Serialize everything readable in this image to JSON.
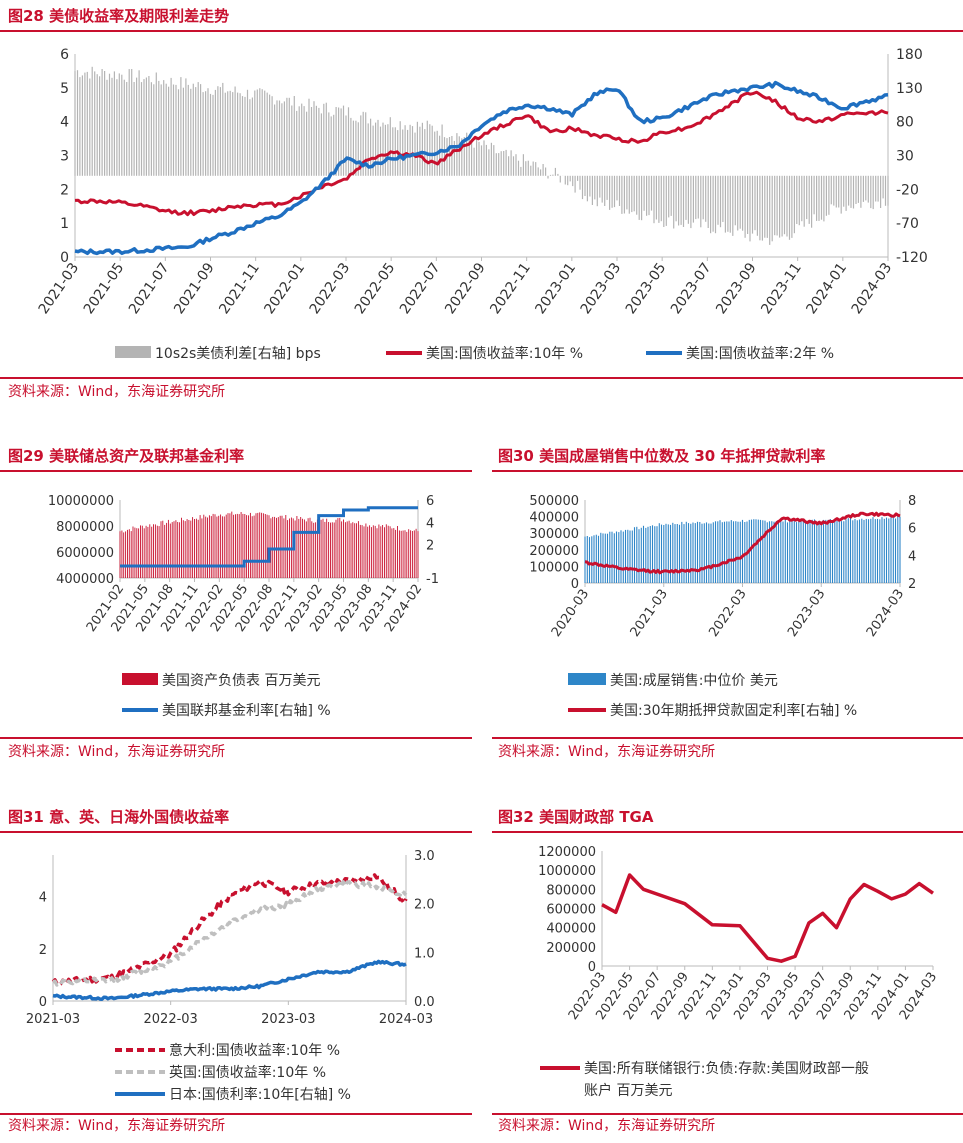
{
  "colors": {
    "accent": "#c8102e",
    "blue": "#1f6fc1",
    "gray": "#b4b4b4",
    "grayDash": "#bfbfbf"
  },
  "panels": {
    "p28": {
      "title": "图28  美债收益率及期限利差走势",
      "source": "资料来源：Wind，东海证券研究所"
    },
    "p29": {
      "title": "图29  美联储总资产及联邦基金利率",
      "source": "资料来源：Wind，东海证券研究所"
    },
    "p30": {
      "title": "图30  美国成屋销售中位数及 30 年抵押贷款利率",
      "source": "资料来源：Wind，东海证券研究所"
    },
    "p31": {
      "title": "图31   意、英、日海外国债收益率",
      "source": "资料来源：Wind，东海证券研究所"
    },
    "p32": {
      "title": "图32  美国财政部 TGA",
      "source": "资料来源：Wind，东海证券研究所"
    }
  },
  "chart_data": [
    {
      "id": "c28",
      "type": "bar+line",
      "categories": [
        "2021-03",
        "2021-05",
        "2021-07",
        "2021-09",
        "2021-11",
        "2022-01",
        "2022-03",
        "2022-05",
        "2022-07",
        "2022-09",
        "2022-11",
        "2023-01",
        "2023-03",
        "2023-05",
        "2023-07",
        "2023-09",
        "2023-11",
        "2024-01",
        "2024-03"
      ],
      "left_axis": {
        "ticks": [
          "0",
          "1",
          "2",
          "3",
          "4",
          "5",
          "6"
        ],
        "ylim": [
          0,
          6
        ]
      },
      "right_axis": {
        "ticks": [
          "-120",
          "-70",
          "-20",
          "30",
          "80",
          "130",
          "180"
        ],
        "ylim": [
          -120,
          180
        ]
      },
      "legend": [
        "10s2s美债利差[右轴] bps",
        "美国:国债收益率:10年 %",
        "美国:国债收益率:2年 %"
      ],
      "series": [
        {
          "name": "10s2s美债利差[右轴] bps",
          "kind": "bar",
          "axis": "right",
          "x": [
            0,
            1,
            2,
            3,
            4,
            5,
            6,
            7,
            8,
            9,
            10,
            11,
            12,
            13,
            14,
            15,
            16,
            17,
            18,
            19,
            20,
            21,
            22,
            23,
            24,
            25,
            26,
            27,
            28,
            29,
            30,
            31,
            32,
            33,
            34,
            35,
            36
          ],
          "values": [
            155,
            152,
            150,
            145,
            140,
            135,
            130,
            125,
            120,
            115,
            105,
            100,
            95,
            85,
            80,
            75,
            70,
            60,
            45,
            30,
            20,
            5,
            -10,
            -40,
            -45,
            -55,
            -65,
            -70,
            -75,
            -80,
            -90,
            -95,
            -80,
            -60,
            -45,
            -40,
            -35
          ]
        },
        {
          "name": "美国:国债收益率:10年 %",
          "kind": "line",
          "axis": "left",
          "x": [
            0,
            1,
            2,
            3,
            4,
            5,
            6,
            7,
            8,
            9,
            10,
            11,
            12,
            13,
            14,
            15,
            16,
            17,
            18,
            19,
            20,
            21,
            22,
            23,
            24,
            25,
            26,
            27,
            28,
            29,
            30,
            31,
            32,
            33,
            34,
            35,
            36
          ],
          "values": [
            1.65,
            1.65,
            1.6,
            1.5,
            1.35,
            1.3,
            1.35,
            1.5,
            1.55,
            1.55,
            1.8,
            2.1,
            2.3,
            2.9,
            3.1,
            3.0,
            2.75,
            3.2,
            3.6,
            3.9,
            4.2,
            3.7,
            3.8,
            3.6,
            3.5,
            3.4,
            3.7,
            3.8,
            4.1,
            4.5,
            4.9,
            4.6,
            4.1,
            4.0,
            4.2,
            4.25,
            4.3
          ]
        },
        {
          "name": "美国:国债收益率:2年 %",
          "kind": "line",
          "axis": "left",
          "x": [
            0,
            1,
            2,
            3,
            4,
            5,
            6,
            7,
            8,
            9,
            10,
            11,
            12,
            13,
            14,
            15,
            16,
            17,
            18,
            19,
            20,
            21,
            22,
            23,
            24,
            25,
            26,
            27,
            28,
            29,
            30,
            31,
            32,
            33,
            34,
            35,
            36
          ],
          "values": [
            0.15,
            0.16,
            0.16,
            0.2,
            0.25,
            0.3,
            0.55,
            0.75,
            1.0,
            1.2,
            1.6,
            2.2,
            2.9,
            2.7,
            2.9,
            3.0,
            3.1,
            3.3,
            3.9,
            4.3,
            4.5,
            4.4,
            4.2,
            4.8,
            5.0,
            4.0,
            4.1,
            4.4,
            4.7,
            4.9,
            5.0,
            5.1,
            4.9,
            4.7,
            4.4,
            4.6,
            4.75
          ]
        }
      ]
    },
    {
      "id": "c29",
      "type": "bar+line",
      "categories": [
        "2021-02",
        "2021-05",
        "2021-08",
        "2021-11",
        "2022-02",
        "2022-05",
        "2022-08",
        "2022-11",
        "2023-02",
        "2023-05",
        "2023-08",
        "2023-11",
        "2024-02"
      ],
      "left_axis": {
        "ticks": [
          "4000000",
          "6000000",
          "8000000",
          "10000000"
        ],
        "ylim": [
          4000000,
          10000000
        ]
      },
      "right_axis": {
        "ticks": [
          "-1",
          "2",
          "4",
          "6"
        ],
        "ylim": [
          -1,
          6
        ]
      },
      "legend": [
        "美国资产负债表 百万美元",
        "美国联邦基金利率[右轴] %"
      ],
      "series": [
        {
          "name": "美国资产负债表 百万美元",
          "kind": "bar",
          "axis": "left",
          "x": [
            0,
            1,
            2,
            3,
            4,
            5,
            6,
            7,
            8,
            9,
            10,
            11,
            12
          ],
          "values": [
            7600000,
            8000000,
            8300000,
            8600000,
            8900000,
            8950000,
            8800000,
            8600000,
            8400000,
            8500000,
            8100000,
            7900000,
            7600000
          ]
        },
        {
          "name": "美国联邦基金利率[右轴] %",
          "kind": "step",
          "axis": "right",
          "x": [
            0,
            1,
            2,
            3,
            4,
            5,
            6,
            7,
            8,
            9,
            10,
            11,
            12
          ],
          "values": [
            0.08,
            0.08,
            0.08,
            0.08,
            0.08,
            0.5,
            1.6,
            3.1,
            4.6,
            5.1,
            5.3,
            5.3,
            5.3
          ]
        }
      ]
    },
    {
      "id": "c30",
      "type": "bar+line",
      "categories": [
        "2020-03",
        "2021-03",
        "2022-03",
        "2023-03",
        "2024-03"
      ],
      "left_axis": {
        "ticks": [
          "0",
          "100000",
          "200000",
          "300000",
          "400000",
          "500000"
        ],
        "ylim": [
          0,
          500000
        ]
      },
      "right_axis": {
        "ticks": [
          "2",
          "4",
          "6",
          "8"
        ],
        "ylim": [
          2,
          8
        ]
      },
      "legend": [
        "美国:成屋销售:中位价 美元",
        "美国:30年期抵押贷款固定利率[右轴] %"
      ],
      "series": [
        {
          "name": "美国:成屋销售:中位价 美元",
          "kind": "bar",
          "axis": "left",
          "x": [
            0,
            1,
            2,
            3,
            4
          ],
          "values": [
            280000,
            355000,
            375000,
            375000,
            400000
          ]
        },
        {
          "name": "美国:30年期抵押贷款固定利率[右轴] %",
          "kind": "line",
          "axis": "right",
          "x": [
            0,
            0.5,
            1,
            1.5,
            2,
            2.5,
            3,
            3.5,
            4
          ],
          "values": [
            3.5,
            3.0,
            2.8,
            3.0,
            3.9,
            6.7,
            6.3,
            7.0,
            6.9
          ]
        }
      ]
    },
    {
      "id": "c31",
      "type": "line",
      "categories": [
        "2021-03",
        "2022-03",
        "2023-03",
        "2024-03"
      ],
      "left_axis": {
        "ticks": [
          "0",
          "2",
          "4"
        ],
        "ylim": [
          0,
          5.6
        ]
      },
      "right_axis": {
        "ticks": [
          "0.0",
          "1.0",
          "2.0",
          "3.0"
        ],
        "ylim": [
          0,
          3
        ]
      },
      "legend": [
        "意大利:国债收益率:10年 %",
        "英国:国债收益率:10年 %",
        "日本:国债利率:10年[右轴] %"
      ],
      "series": [
        {
          "name": "意大利:国债收益率:10年 %",
          "kind": "dashed",
          "axis": "left",
          "x": [
            0,
            0.5,
            1,
            1.25,
            1.5,
            1.75,
            2,
            2.25,
            2.5,
            2.75,
            3
          ],
          "values": [
            0.7,
            0.9,
            1.8,
            3.0,
            4.0,
            4.6,
            4.2,
            4.5,
            4.6,
            4.8,
            3.8
          ]
        },
        {
          "name": "英国:国债收益率:10年 %",
          "kind": "dashed",
          "axis": "left",
          "x": [
            0,
            0.5,
            1,
            1.25,
            1.5,
            1.75,
            2,
            2.25,
            2.5,
            2.75,
            3
          ],
          "values": [
            0.7,
            0.8,
            1.5,
            2.3,
            3.0,
            3.5,
            3.7,
            4.3,
            4.5,
            4.4,
            4.1
          ]
        },
        {
          "name": "日本:国债利率:10年[右轴] %",
          "kind": "line",
          "axis": "right",
          "x": [
            0,
            0.5,
            1,
            1.25,
            1.5,
            1.75,
            2,
            2.25,
            2.5,
            2.75,
            3
          ],
          "values": [
            0.1,
            0.05,
            0.2,
            0.25,
            0.25,
            0.3,
            0.45,
            0.6,
            0.6,
            0.8,
            0.75
          ]
        }
      ]
    },
    {
      "id": "c32",
      "type": "line",
      "categories": [
        "2022-03",
        "2022-05",
        "2022-07",
        "2022-09",
        "2022-11",
        "2023-01",
        "2023-03",
        "2023-05",
        "2023-07",
        "2023-09",
        "2023-11",
        "2024-01",
        "2024-03"
      ],
      "left_axis": {
        "ticks": [
          "0",
          "200000",
          "400000",
          "600000",
          "800000",
          "1000000",
          "1200000"
        ],
        "ylim": [
          0,
          1200000
        ]
      },
      "legend": [
        "美国:所有联储银行:负债:存款:美国财政部一般账户 百万美元"
      ],
      "series": [
        {
          "name": "美国:所有联储银行:负债:存款:美国财政部一般账户 百万美元",
          "kind": "line",
          "axis": "left",
          "x": [
            0,
            0.5,
            1,
            1.5,
            2,
            3,
            4,
            5,
            6,
            6.5,
            7,
            7.5,
            8,
            8.5,
            9,
            9.5,
            10,
            10.5,
            11,
            11.5,
            12
          ],
          "values": [
            640000,
            560000,
            950000,
            800000,
            750000,
            650000,
            430000,
            420000,
            80000,
            50000,
            100000,
            450000,
            550000,
            400000,
            700000,
            850000,
            780000,
            700000,
            750000,
            860000,
            760000
          ]
        }
      ]
    }
  ]
}
